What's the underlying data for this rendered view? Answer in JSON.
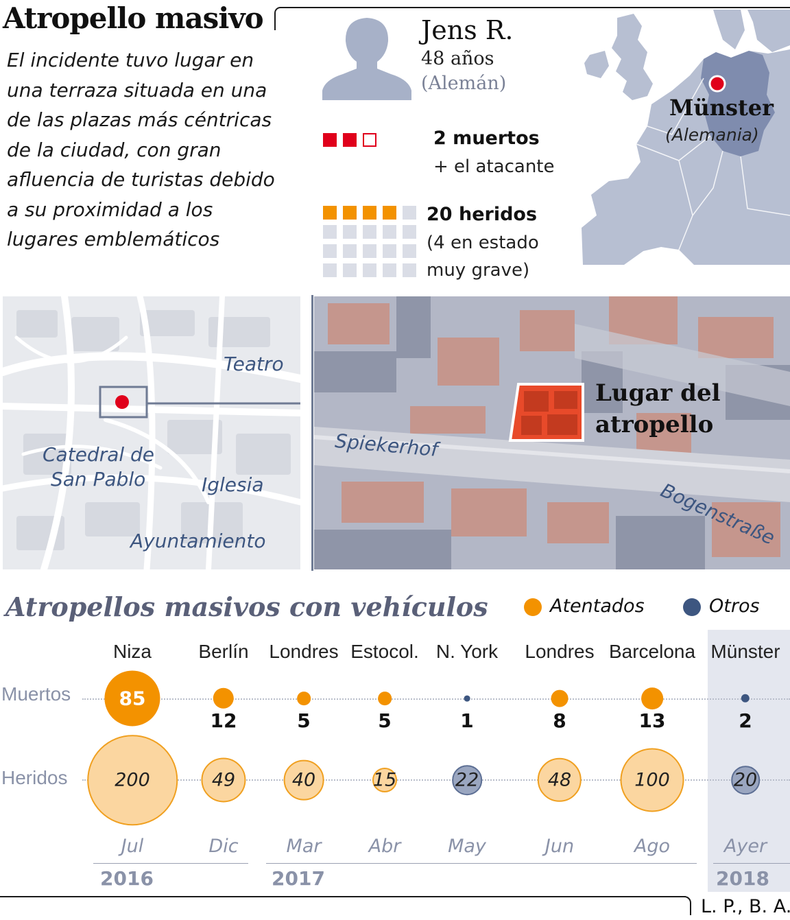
{
  "header": {
    "title": "Atropello masivo",
    "intro": "El incidente tuvo lugar en una terraza situada en una de las plazas más céntricas de la ciudad, con gran afluencia de turistas debido a su proximidad a los lugares emblemáticos"
  },
  "victim": {
    "name": "Jens R.",
    "age": "48 años",
    "nationality": "(Alemán)"
  },
  "toll": {
    "deaths_title": "2 muertos",
    "deaths_note": "+ el atacante",
    "deaths_total_squares": 3,
    "deaths_filled_squares": 2,
    "wounded_title": "20 heridos",
    "wounded_note_1": "(4 en estado",
    "wounded_note_2": "muy grave)",
    "wounded_total_squares": 20,
    "wounded_filled_squares": 4
  },
  "europe_map": {
    "city": "Münster",
    "country": "(Alemania)"
  },
  "street_map": {
    "labels": {
      "teatro": "Teatro",
      "catedral_1": "Catedral de",
      "catedral_2": "San Pablo",
      "iglesia": "Iglesia",
      "ayuntamiento": "Ayuntamiento"
    }
  },
  "aerial_map": {
    "place_1": "Lugar del",
    "place_2": "atropello",
    "street_1": "Spiekerhof",
    "street_2": "Bogenstraße"
  },
  "timeline": {
    "title": "Atropellos masivos con vehículos",
    "legend": [
      {
        "label": "Atentados",
        "color": "#f39200"
      },
      {
        "label": "Otros",
        "color": "#3d5680"
      }
    ],
    "row_labels": {
      "deaths": "Muertos",
      "wounded": "Heridos"
    },
    "events": [
      {
        "city": "Niza",
        "month": "Jul",
        "deaths": "85",
        "wounded": "200",
        "type": "attack"
      },
      {
        "city": "Berlín",
        "month": "Dic",
        "deaths": "12",
        "wounded": "49",
        "type": "attack"
      },
      {
        "city": "Londres",
        "month": "Mar",
        "deaths": "5",
        "wounded": "40",
        "type": "attack"
      },
      {
        "city": "Estocol.",
        "month": "Abr",
        "deaths": "5",
        "wounded": "15",
        "type": "attack"
      },
      {
        "city": "N. York",
        "month": "May",
        "deaths": "1",
        "wounded": "22",
        "type": "other"
      },
      {
        "city": "Londres",
        "month": "Jun",
        "deaths": "8",
        "wounded": "48",
        "type": "attack"
      },
      {
        "city": "Barcelona",
        "month": "Ago",
        "deaths": "13",
        "wounded": "100",
        "type": "attack"
      },
      {
        "city": "Münster",
        "month": "Ayer",
        "deaths": "2",
        "wounded": "20",
        "type": "other"
      }
    ],
    "years": [
      "2016",
      "2017",
      "2018"
    ]
  },
  "credit": "L. P., B. A."
}
